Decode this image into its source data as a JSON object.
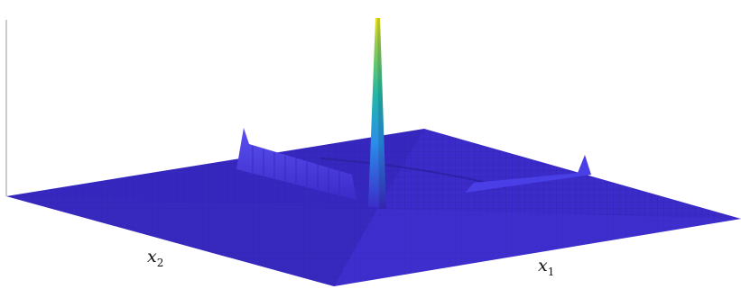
{
  "chart_data": {
    "type": "surface",
    "xlabel_base": "x",
    "xlabel_sub": "1",
    "ylabel_base": "x",
    "ylabel_sub": "2",
    "zlabel": "",
    "title": "",
    "grid": false,
    "colormap": "parula",
    "surface": {
      "base_level": 0,
      "central_spike_peak": 1.0,
      "ridge_left_peak": 0.3,
      "ridge_right_peak": 0.11
    }
  },
  "colors": {
    "surface_base": "#3b2bc9",
    "surface_dark": "#2c1ea6",
    "ridge": "#4a3ee6",
    "spike_top": "#e8e020",
    "spike_mid": "#22b8a8",
    "spike_low": "#2a8ee8",
    "axis_line": "#9a9a9a"
  }
}
